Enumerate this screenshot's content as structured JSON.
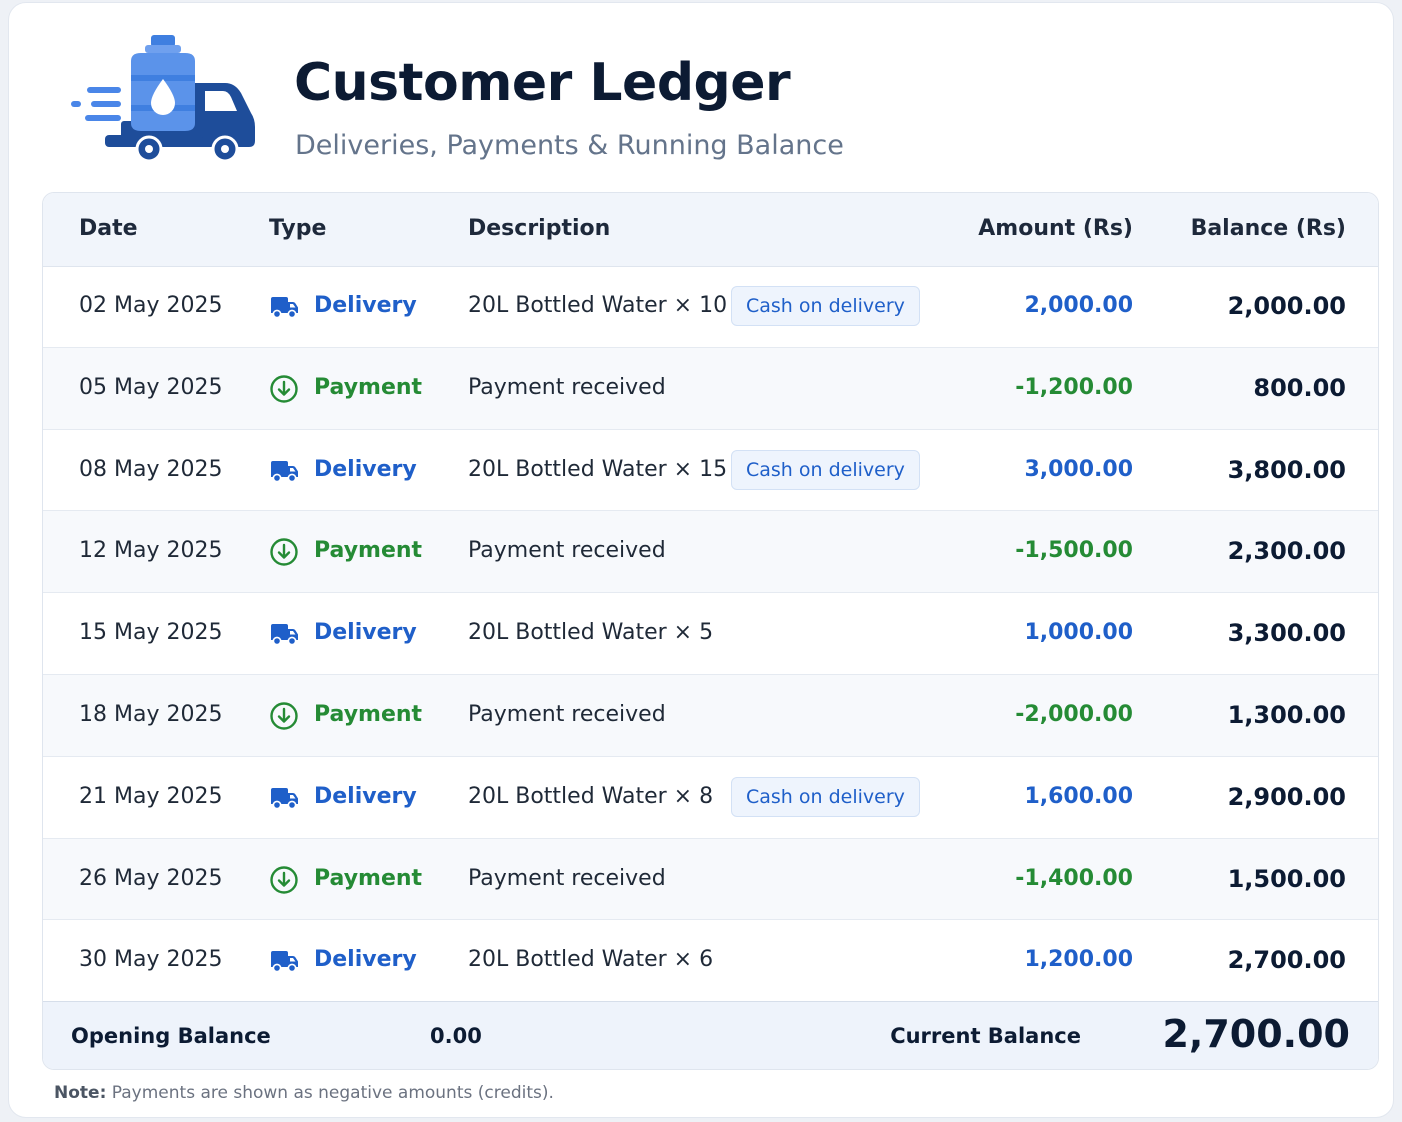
{
  "header": {
    "title": "Customer Ledger",
    "subtitle": "Deliveries, Payments & Running Balance",
    "logo_icon": "water-delivery-truck-icon"
  },
  "table": {
    "columns": [
      "Date",
      "Type",
      "Description",
      "Amount (Rs)",
      "Balance (Rs)"
    ],
    "rows": [
      {
        "date": "02 May 2025",
        "type": "Delivery",
        "icon": "truck-icon",
        "description": "20L Bottled Water × 10",
        "badge": "Cash on delivery",
        "amount": "2,000.00",
        "balance": "2,000.00"
      },
      {
        "date": "05 May 2025",
        "type": "Payment",
        "icon": "payment-received-icon",
        "description": "Payment received",
        "badge": "",
        "amount": "-1,200.00",
        "balance": "800.00"
      },
      {
        "date": "08 May 2025",
        "type": "Delivery",
        "icon": "truck-icon",
        "description": "20L Bottled Water × 15",
        "badge": "Cash on delivery",
        "amount": "3,000.00",
        "balance": "3,800.00"
      },
      {
        "date": "12 May 2025",
        "type": "Payment",
        "icon": "payment-received-icon",
        "description": "Payment received",
        "badge": "",
        "amount": "-1,500.00",
        "balance": "2,300.00"
      },
      {
        "date": "15 May 2025",
        "type": "Delivery",
        "icon": "truck-icon",
        "description": "20L Bottled Water × 5",
        "badge": "",
        "amount": "1,000.00",
        "balance": "3,300.00"
      },
      {
        "date": "18 May 2025",
        "type": "Payment",
        "icon": "payment-received-icon",
        "description": "Payment received",
        "badge": "",
        "amount": "-2,000.00",
        "balance": "1,300.00"
      },
      {
        "date": "21 May 2025",
        "type": "Delivery",
        "icon": "truck-icon",
        "description": "20L Bottled Water × 8",
        "badge": "Cash on delivery",
        "amount": "1,600.00",
        "balance": "2,900.00"
      },
      {
        "date": "26 May 2025",
        "type": "Payment",
        "icon": "payment-received-icon",
        "description": "Payment received",
        "badge": "",
        "amount": "-1,400.00",
        "balance": "1,500.00"
      },
      {
        "date": "30 May 2025",
        "type": "Delivery",
        "icon": "truck-icon",
        "description": "20L Bottled Water × 6",
        "badge": "",
        "amount": "1,200.00",
        "balance": "2,700.00"
      }
    ]
  },
  "footer": {
    "opening_label": "Opening Balance",
    "opening_value": "0.00",
    "current_label": "Current Balance",
    "current_value": "2,700.00"
  },
  "note": {
    "label": "Note:",
    "text": " Payments are shown as negative amounts (credits)."
  },
  "colors": {
    "delivery": "#1f5fc9",
    "payment": "#258b35",
    "heading": "#0c1b33"
  }
}
